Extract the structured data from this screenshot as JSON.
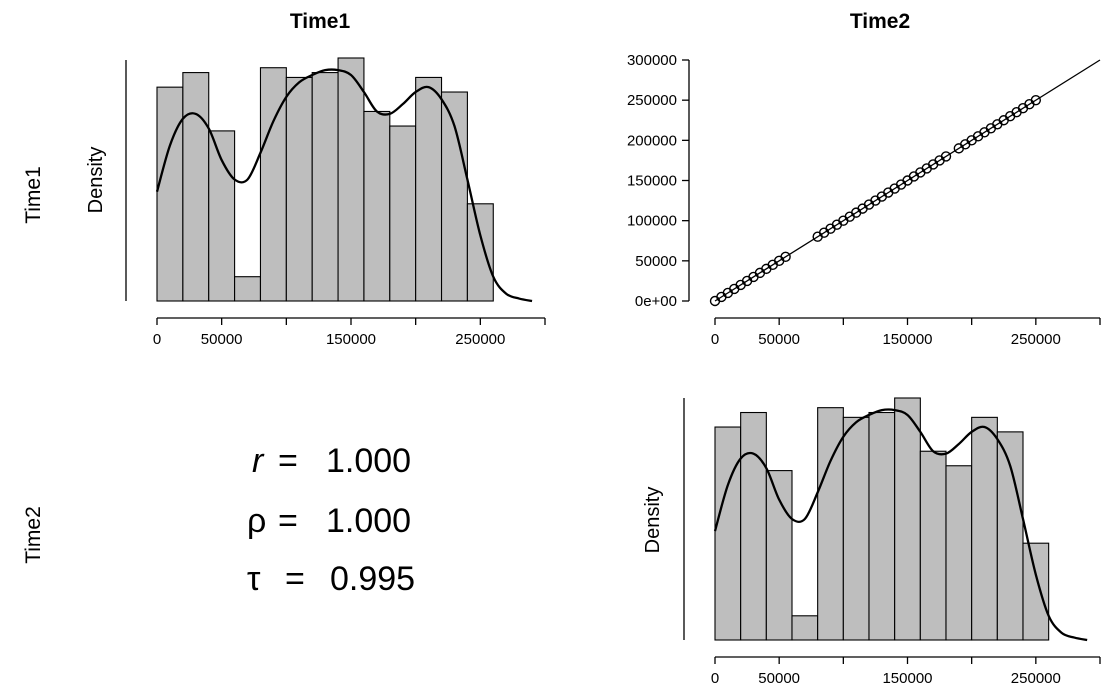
{
  "headers": {
    "col1": "Time1",
    "col2": "Time2",
    "row1": "Time1",
    "row2": "Time2"
  },
  "stats": {
    "r": "r",
    "rho": "ρ",
    "tau": "τ",
    "eq": "=",
    "r_val": "1.000",
    "rho_val": "1.000",
    "tau_val": "0.995"
  },
  "chart_data": [
    {
      "type": "bar",
      "panel": "Time1 histogram",
      "ylabel": "Density",
      "xticks": [
        "0",
        "50000",
        "150000",
        "250000"
      ],
      "xtick_values": [
        0,
        50000,
        150000,
        250000
      ],
      "xlim": [
        0,
        300000
      ],
      "bin_width": 20000,
      "bin_starts": [
        0,
        20000,
        40000,
        60000,
        80000,
        100000,
        120000,
        140000,
        160000,
        180000,
        200000,
        220000,
        240000
      ],
      "density_rel": [
        0.88,
        0.94,
        0.7,
        0.1,
        0.96,
        0.92,
        0.94,
        1.0,
        0.78,
        0.72,
        0.92,
        0.86,
        0.4
      ],
      "density_curve": {
        "x": [
          0,
          10000,
          20000,
          30000,
          40000,
          50000,
          60000,
          70000,
          80000,
          90000,
          100000,
          110000,
          120000,
          130000,
          140000,
          150000,
          160000,
          170000,
          180000,
          190000,
          200000,
          210000,
          220000,
          230000,
          240000,
          250000,
          260000,
          270000,
          280000,
          290000
        ],
        "y_rel": [
          0.45,
          0.64,
          0.75,
          0.77,
          0.71,
          0.58,
          0.5,
          0.5,
          0.61,
          0.74,
          0.84,
          0.9,
          0.93,
          0.95,
          0.95,
          0.93,
          0.86,
          0.78,
          0.77,
          0.81,
          0.86,
          0.88,
          0.83,
          0.72,
          0.5,
          0.27,
          0.1,
          0.03,
          0.01,
          0.0
        ]
      }
    },
    {
      "type": "scatter",
      "panel": "Time1 vs Time2",
      "xticks": [
        "0",
        "50000",
        "150000",
        "250000"
      ],
      "xtick_values": [
        0,
        50000,
        150000,
        250000
      ],
      "yticks": [
        "0e+00",
        "50000",
        "100000",
        "150000",
        "200000",
        "250000",
        "300000"
      ],
      "ytick_values": [
        0,
        50000,
        100000,
        150000,
        200000,
        250000,
        300000
      ],
      "xlim": [
        0,
        300000
      ],
      "ylim": [
        0,
        300000
      ],
      "fit_line": {
        "slope": 1,
        "intercept": 0
      },
      "points": [
        [
          0,
          0
        ],
        [
          5000,
          5000
        ],
        [
          10000,
          10000
        ],
        [
          15000,
          15000
        ],
        [
          20000,
          20000
        ],
        [
          25000,
          25000
        ],
        [
          30000,
          30000
        ],
        [
          35000,
          35000
        ],
        [
          40000,
          40000
        ],
        [
          45000,
          45000
        ],
        [
          50000,
          50000
        ],
        [
          55000,
          55000
        ],
        [
          80000,
          80000
        ],
        [
          85000,
          85000
        ],
        [
          90000,
          90000
        ],
        [
          95000,
          95000
        ],
        [
          100000,
          100000
        ],
        [
          105000,
          105000
        ],
        [
          110000,
          110000
        ],
        [
          115000,
          115000
        ],
        [
          120000,
          120000
        ],
        [
          125000,
          125000
        ],
        [
          130000,
          130000
        ],
        [
          135000,
          135000
        ],
        [
          140000,
          140000
        ],
        [
          145000,
          145000
        ],
        [
          150000,
          150000
        ],
        [
          155000,
          155000
        ],
        [
          160000,
          160000
        ],
        [
          165000,
          165000
        ],
        [
          170000,
          170000
        ],
        [
          175000,
          175000
        ],
        [
          180000,
          180000
        ],
        [
          190000,
          190000
        ],
        [
          195000,
          195000
        ],
        [
          200000,
          200000
        ],
        [
          205000,
          205000
        ],
        [
          210000,
          210000
        ],
        [
          215000,
          215000
        ],
        [
          220000,
          220000
        ],
        [
          225000,
          225000
        ],
        [
          230000,
          230000
        ],
        [
          235000,
          235000
        ],
        [
          240000,
          240000
        ],
        [
          245000,
          245000
        ],
        [
          250000,
          250000
        ]
      ]
    },
    {
      "type": "bar",
      "panel": "Time2 histogram",
      "ylabel": "Density",
      "xticks": [
        "0",
        "50000",
        "150000",
        "250000"
      ],
      "xtick_values": [
        0,
        50000,
        150000,
        250000
      ],
      "xlim": [
        0,
        300000
      ],
      "bin_width": 20000,
      "bin_starts": [
        0,
        20000,
        40000,
        60000,
        80000,
        100000,
        120000,
        140000,
        160000,
        180000,
        200000,
        220000,
        240000
      ],
      "density_rel": [
        0.88,
        0.94,
        0.7,
        0.1,
        0.96,
        0.92,
        0.94,
        1.0,
        0.78,
        0.72,
        0.92,
        0.86,
        0.4
      ],
      "density_curve": {
        "x": [
          0,
          10000,
          20000,
          30000,
          40000,
          50000,
          60000,
          70000,
          80000,
          90000,
          100000,
          110000,
          120000,
          130000,
          140000,
          150000,
          160000,
          170000,
          180000,
          190000,
          200000,
          210000,
          220000,
          230000,
          240000,
          250000,
          260000,
          270000,
          280000,
          290000
        ],
        "y_rel": [
          0.45,
          0.64,
          0.75,
          0.77,
          0.71,
          0.58,
          0.5,
          0.5,
          0.61,
          0.74,
          0.84,
          0.9,
          0.93,
          0.95,
          0.95,
          0.93,
          0.86,
          0.78,
          0.77,
          0.81,
          0.86,
          0.88,
          0.83,
          0.72,
          0.5,
          0.27,
          0.1,
          0.03,
          0.01,
          0.0
        ]
      }
    }
  ]
}
